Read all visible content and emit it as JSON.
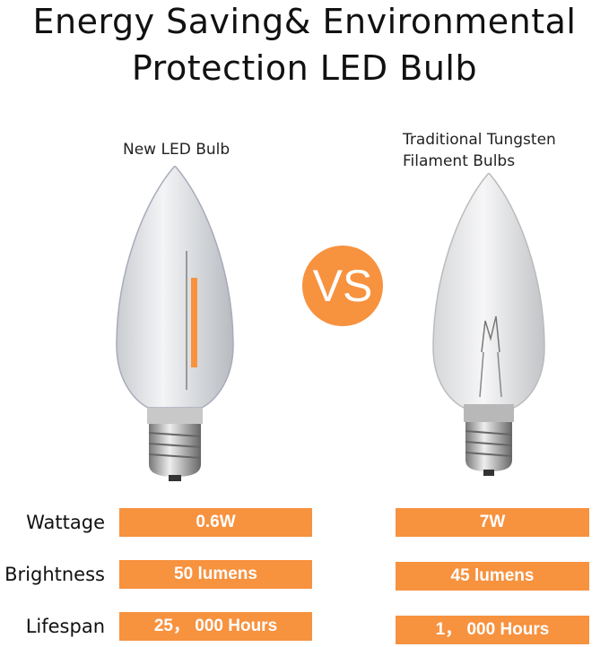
{
  "title": {
    "line1": "Energy Saving& Environmental",
    "line2": "Protection LED Bulb"
  },
  "left_caption": "New LED Bulb",
  "right_caption": {
    "line1": "Traditional Tungsten",
    "line2": "Filament Bulbs"
  },
  "vs_label": "VS",
  "accent_color": "#f7923f",
  "comparison": [
    {
      "label": "Wattage",
      "led": "0.6W",
      "tungsten": "7W"
    },
    {
      "label": "Brightness",
      "led": "50 lumens",
      "tungsten": "45 lumens"
    },
    {
      "label": "Lifespan",
      "led": "25， 000 Hours",
      "tungsten": "1， 000 Hours"
    }
  ]
}
